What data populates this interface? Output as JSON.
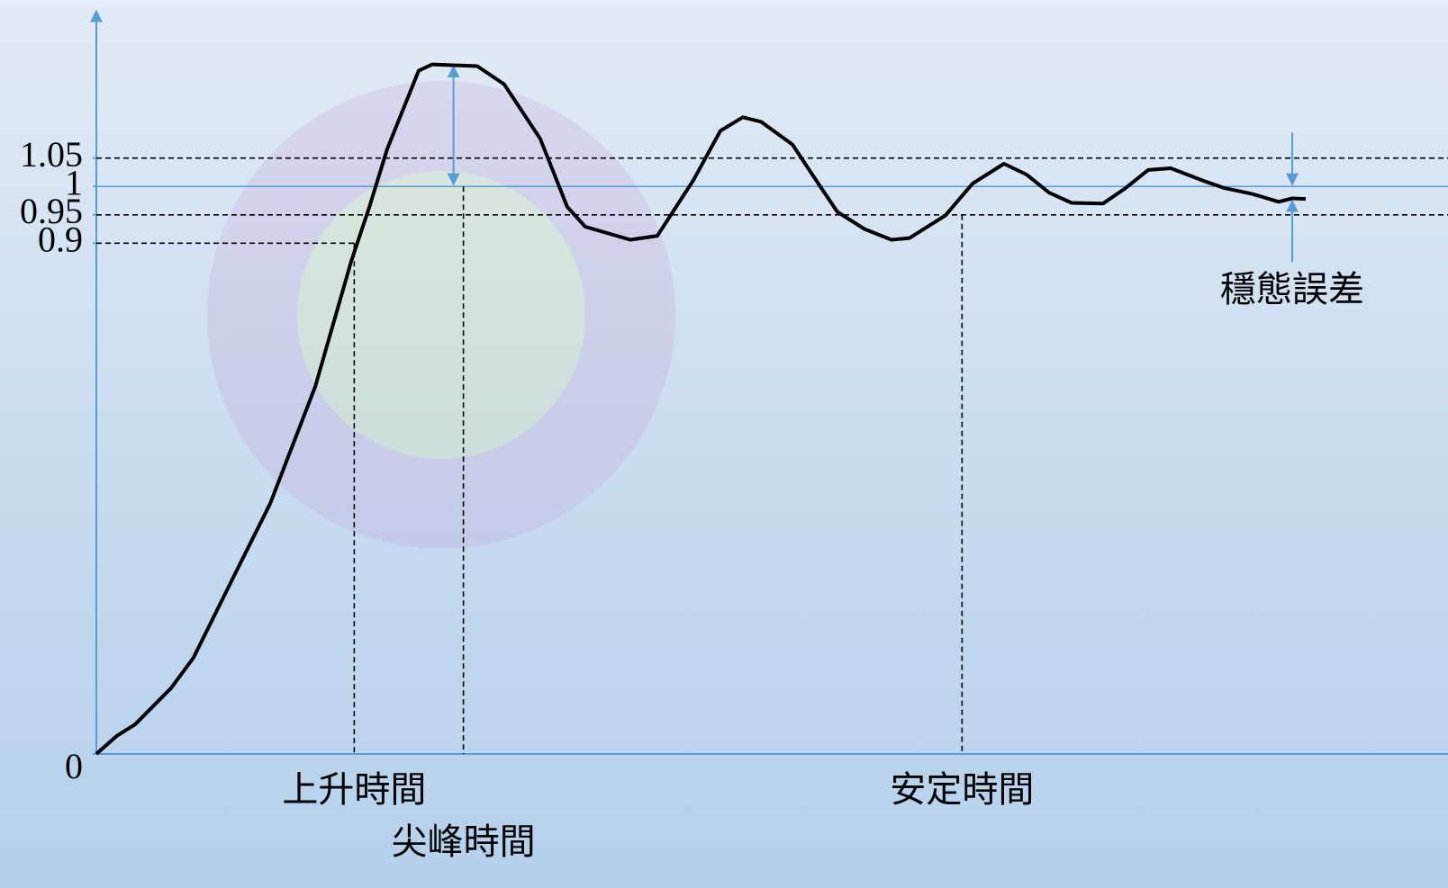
{
  "chart_data": {
    "type": "line",
    "xlim": [
      0,
      100
    ],
    "ylim": [
      0,
      1.3
    ],
    "yticks": [
      0,
      0.9,
      0.95,
      1,
      1.05
    ],
    "x": [
      0,
      1.57,
      2.94,
      5.68,
      7.39,
      10.47,
      13.21,
      16.63,
      19.37,
      20.74,
      22.11,
      24.5,
      25.53,
      28.95,
      31.0,
      33.74,
      35.79,
      37.16,
      40.59,
      42.64,
      45.38,
      47.43,
      49.14,
      50.51,
      52.91,
      54.96,
      56.33,
      58.38,
      60.44,
      61.81,
      64.54,
      66.6,
      68.99,
      70.7,
      72.42,
      74.13,
      76.52,
      78.23,
      79.95,
      81.66,
      84.39,
      85.76,
      87.82,
      89.87,
      90.9,
      91.92
    ],
    "series": [
      {
        "color": "#000000",
        "values": [
          0,
          0.032,
          0.052,
          0.116,
          0.17,
          0.314,
          0.441,
          0.647,
          0.868,
          0.963,
          1.066,
          1.204,
          1.215,
          1.212,
          1.18,
          1.084,
          0.964,
          0.929,
          0.906,
          0.913,
          1.011,
          1.098,
          1.122,
          1.114,
          1.074,
          1.002,
          0.955,
          0.925,
          0.906,
          0.909,
          0.949,
          1.005,
          1.04,
          1.021,
          0.989,
          0.971,
          0.97,
          0.997,
          1.029,
          1.032,
          1.008,
          0.997,
          0.987,
          0.973,
          0.979,
          0.978
        ]
      }
    ],
    "reference": 1,
    "tolerance_band": [
      0.95,
      1.05
    ],
    "markers": [
      {
        "label": "上升時間",
        "x": 19.6,
        "y": 0.9
      },
      {
        "label": "尖峰時間",
        "x": 27.9,
        "y": 1.215
      },
      {
        "label": "安定時間",
        "x": 65.8,
        "y": 0.95
      }
    ],
    "steady_state_error": {
      "label": "穩態誤差",
      "x": 90.9,
      "values": [
        1,
        0.978
      ]
    }
  }
}
